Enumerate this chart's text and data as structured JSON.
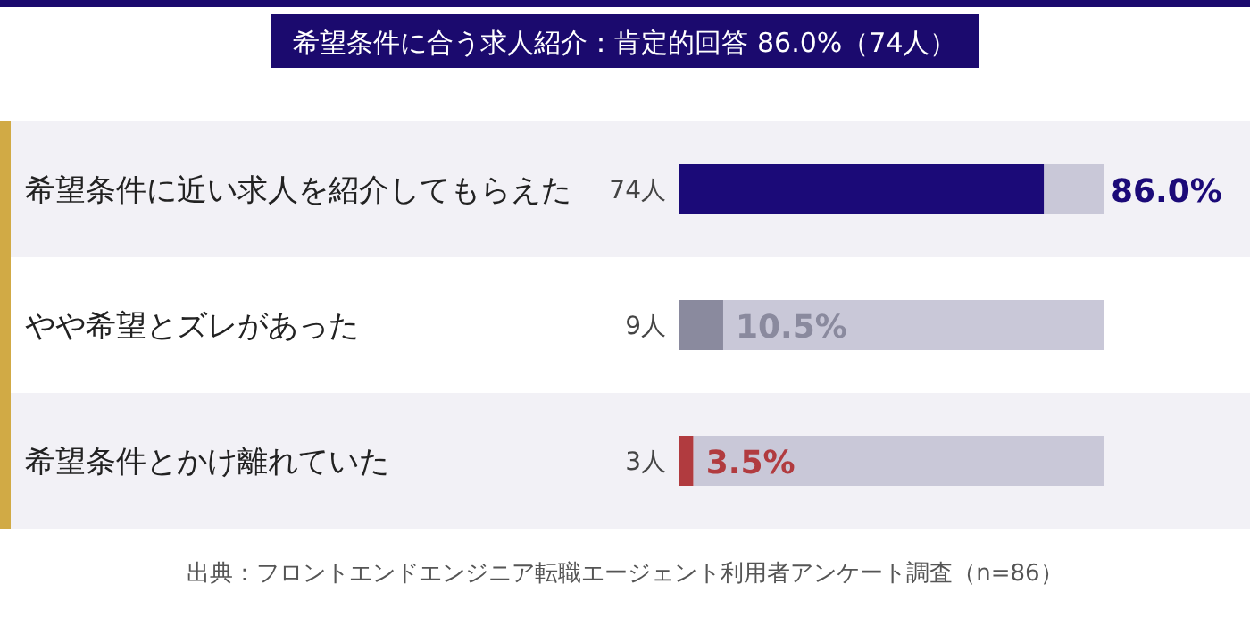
{
  "chart_data": {
    "type": "bar",
    "orientation": "horizontal",
    "stacked": true,
    "title": "希望条件に合う求人紹介：肯定的回答 86.0%（74人）",
    "categories": [
      "希望条件に近い求人を紹介してもらえた",
      "やや希望とズレがあった",
      "希望条件とかけ離れていた"
    ],
    "series": [
      {
        "colors": [
          "#1b0a78",
          "#8a8a9e",
          "#b13b3f"
        ],
        "values": [
          86.0,
          10.5,
          3.5
        ],
        "value_labels": [
          "86.0%",
          "10.5%",
          "3.5%"
        ]
      },
      {
        "color": "#c9c8d8",
        "values": [
          14.0,
          89.5,
          96.5
        ]
      }
    ],
    "xlim": [
      0,
      100
    ],
    "annotations": [
      "74人",
      "9人",
      "3人",
      "出典：フロントエンドエンジニア転職エージェント利用者アンケート調査（n=86）"
    ]
  }
}
